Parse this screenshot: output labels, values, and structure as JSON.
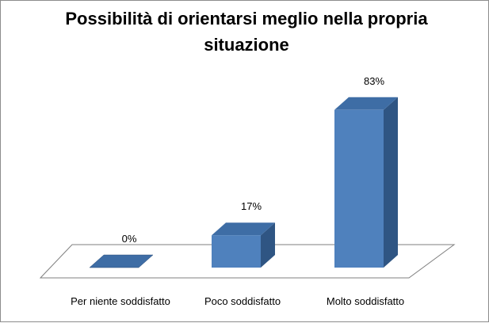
{
  "chart_data": {
    "type": "bar",
    "title": "Possibilità di orientarsi meglio nella propria situazione",
    "categories": [
      "Per niente soddisfatto",
      "Poco soddisfatto",
      "Molto soddisfatto"
    ],
    "values": [
      0,
      17,
      83
    ],
    "data_labels": [
      "0%",
      "17%",
      "83%"
    ],
    "xlabel": "",
    "ylabel": "",
    "ylim": [
      0,
      100
    ],
    "grid": false,
    "legend": "none",
    "three_d": true,
    "colors": {
      "bar_front": "#4f81bd",
      "bar_top": "#3e6da5",
      "bar_side": "#2f5583",
      "floor_edge": "#7f7f7f",
      "frame": "#8c8c8c"
    }
  }
}
